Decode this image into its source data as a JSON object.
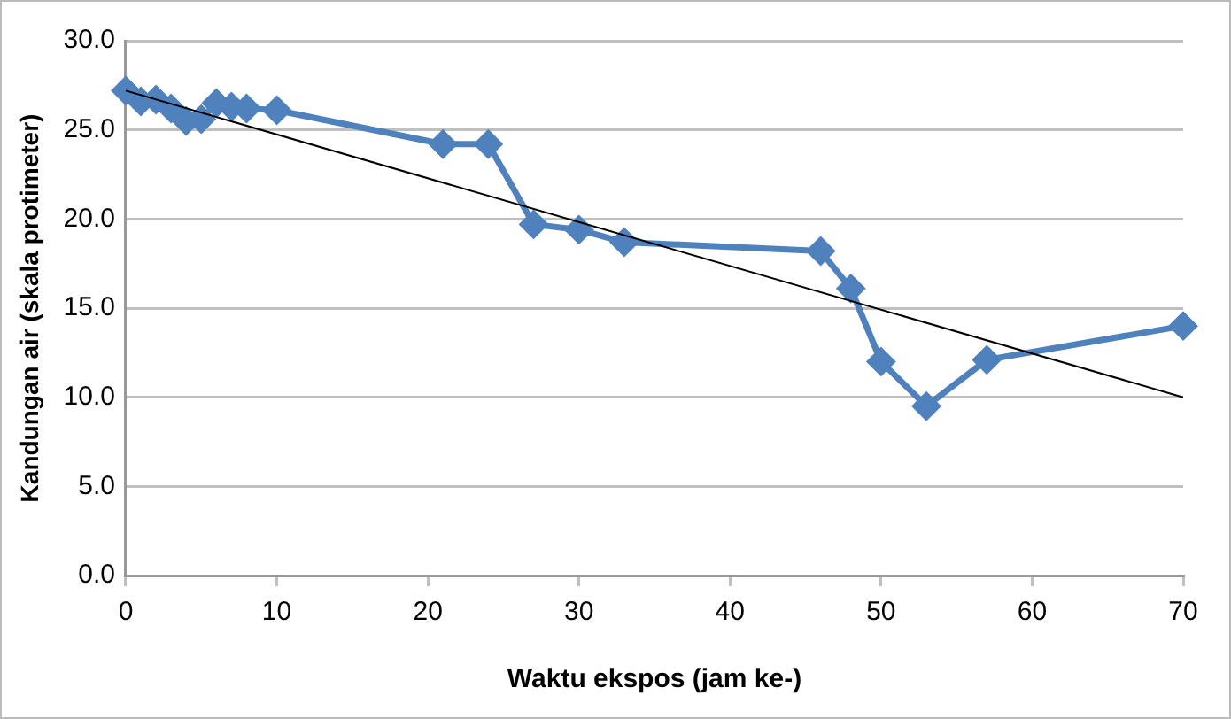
{
  "chart_data": {
    "type": "line",
    "xlabel": "Waktu ekspos (jam ke-)",
    "ylabel": "Kandungan air (skala protimeter)",
    "x": [
      0,
      1,
      2,
      3,
      4,
      5,
      6,
      7,
      8,
      10,
      21,
      24,
      27,
      30,
      33,
      46,
      48,
      50,
      53,
      57,
      70
    ],
    "series": [
      {
        "color": "#4f81bd",
        "marker": "diamond",
        "values": [
          27.2,
          26.6,
          26.7,
          26.2,
          25.5,
          25.6,
          26.5,
          26.3,
          26.2,
          26.1,
          24.2,
          24.2,
          19.7,
          19.4,
          18.7,
          18.2,
          16.1,
          12.0,
          9.5,
          12.1,
          14.0
        ]
      },
      {
        "type": "line",
        "color": "#000000",
        "marker": "none",
        "x": [
          0,
          70
        ],
        "values": [
          27.2,
          10.0
        ]
      }
    ],
    "xlim": [
      0,
      70
    ],
    "xticks": [
      0,
      10,
      20,
      30,
      40,
      50,
      60,
      70
    ],
    "ylim": [
      0,
      30
    ],
    "yticks": [
      {
        "value": 0,
        "label": "0.0"
      },
      {
        "value": 5,
        "label": "5.0"
      },
      {
        "value": 10,
        "label": "10.0"
      },
      {
        "value": 15,
        "label": "15.0"
      },
      {
        "value": 20,
        "label": "20.0"
      },
      {
        "value": 25,
        "label": "25.0"
      },
      {
        "value": 30,
        "label": "30.0"
      }
    ],
    "grid": "y",
    "legend": false
  }
}
